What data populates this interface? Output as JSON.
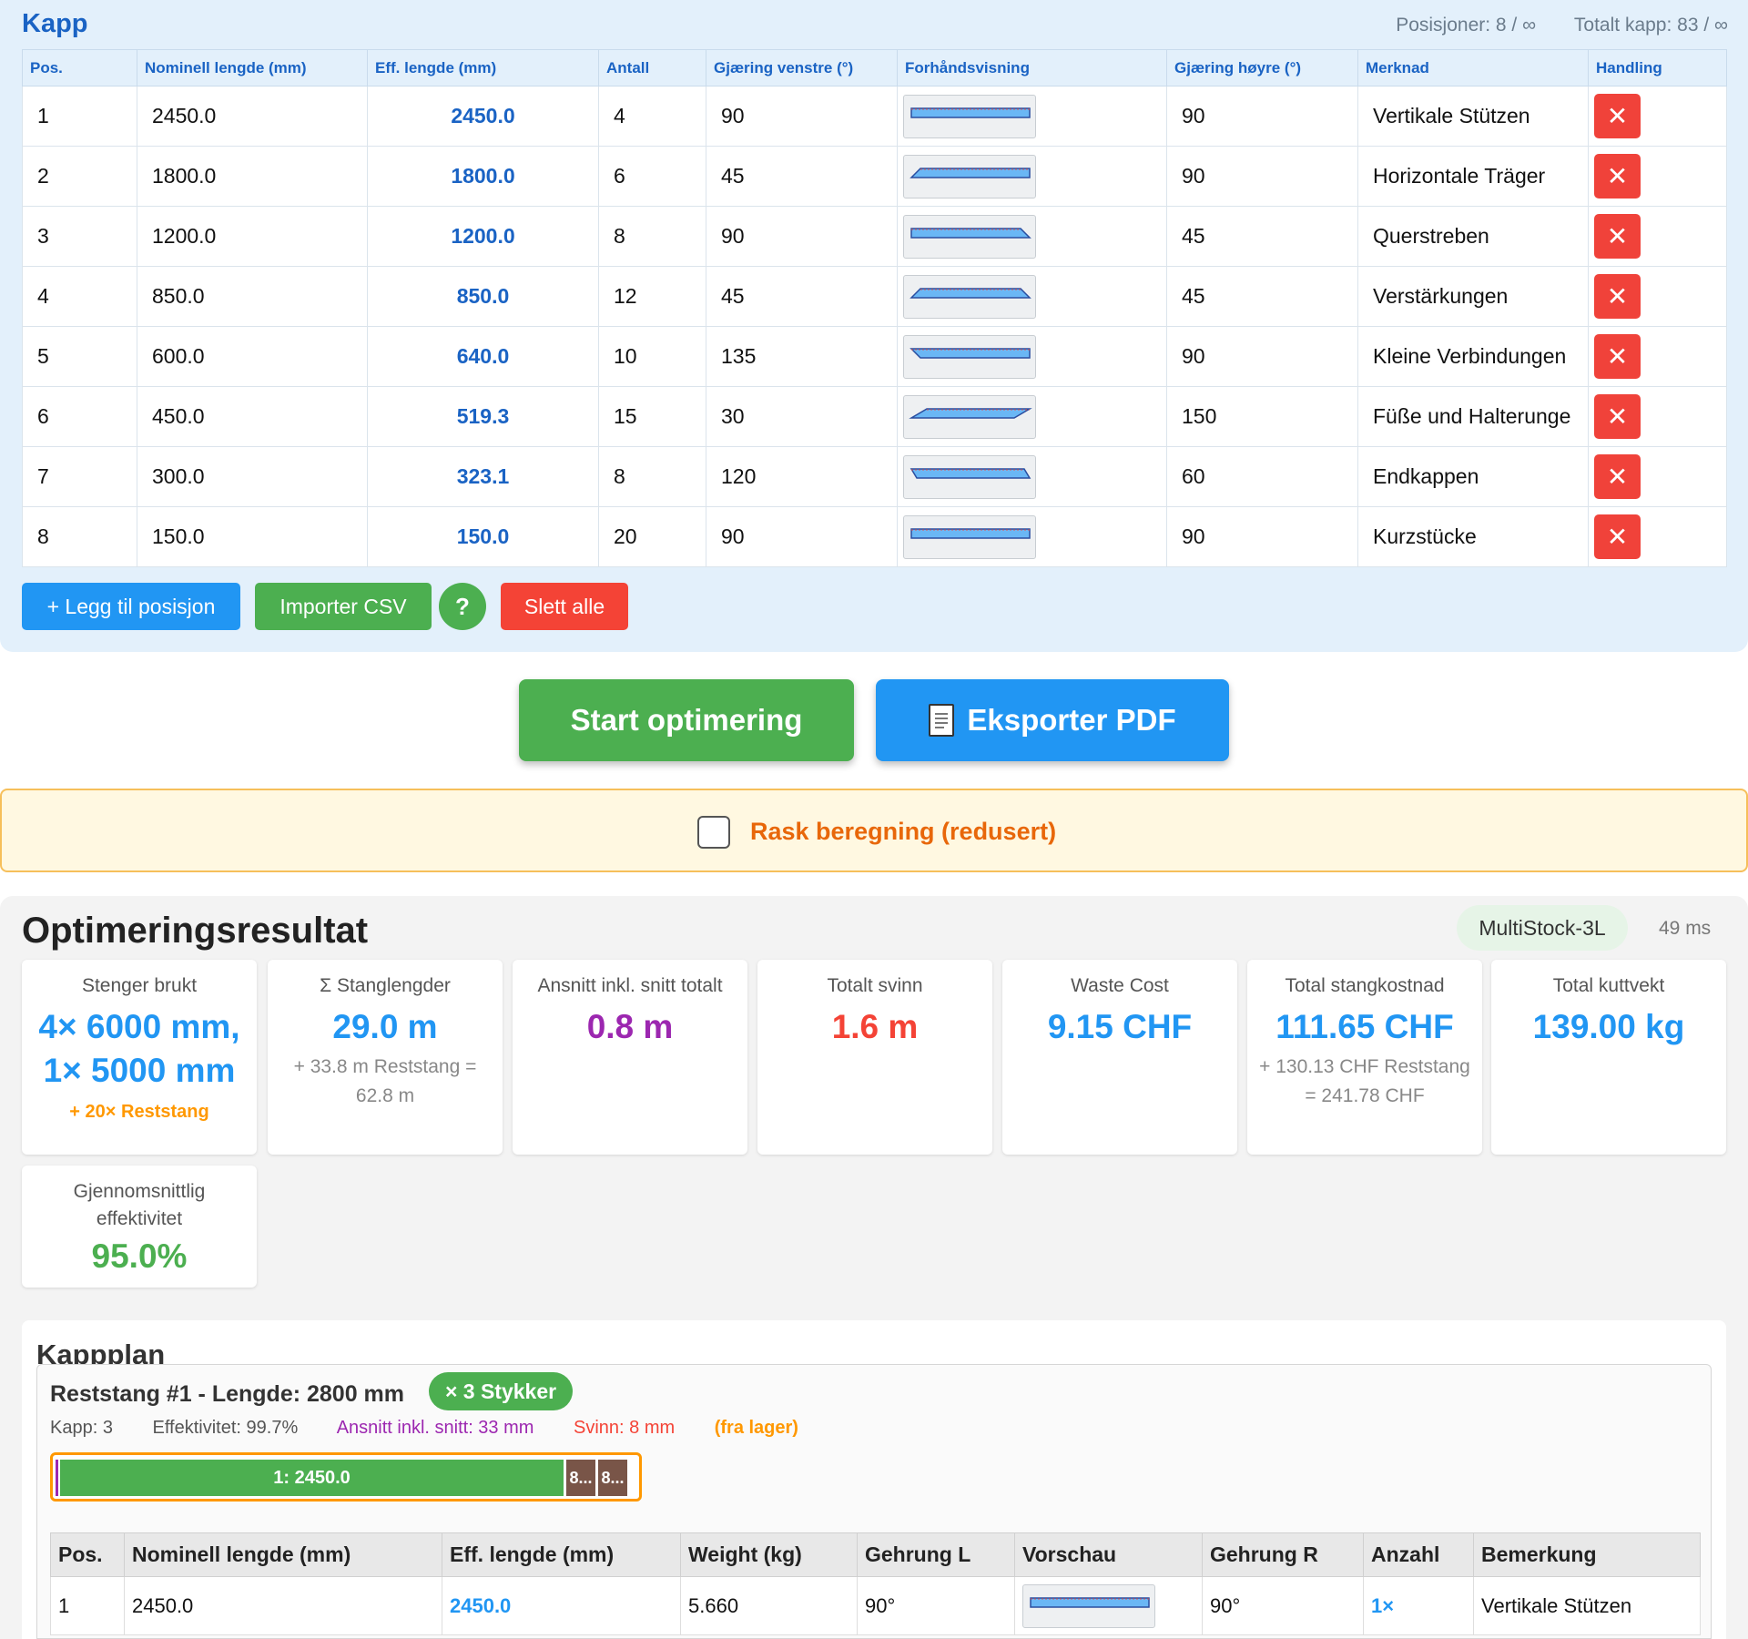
{
  "header": {
    "title": "Kapp",
    "positions": "Posisjoner: 8 / ∞",
    "total_cuts": "Totalt kapp: 83 / ∞"
  },
  "input_table": {
    "columns": [
      "Pos.",
      "Nominell lengde (mm)",
      "Eff. lengde (mm)",
      "Antall",
      "Gjæring venstre (°)",
      "Forhåndsvisning",
      "Gjæring høyre (°)",
      "Merknad",
      "Handling"
    ],
    "rows": [
      {
        "pos": "1",
        "nominal": "2450.0",
        "eff": "2450.0",
        "qty": "4",
        "miter_left": "90",
        "miter_right": "90",
        "note": "Vertikale Stützen"
      },
      {
        "pos": "2",
        "nominal": "1800.0",
        "eff": "1800.0",
        "qty": "6",
        "miter_left": "45",
        "miter_right": "90",
        "note": "Horizontale Träger"
      },
      {
        "pos": "3",
        "nominal": "1200.0",
        "eff": "1200.0",
        "qty": "8",
        "miter_left": "90",
        "miter_right": "45",
        "note": "Querstreben"
      },
      {
        "pos": "4",
        "nominal": "850.0",
        "eff": "850.0",
        "qty": "12",
        "miter_left": "45",
        "miter_right": "45",
        "note": "Verstärkungen"
      },
      {
        "pos": "5",
        "nominal": "600.0",
        "eff": "640.0",
        "qty": "10",
        "miter_left": "135",
        "miter_right": "90",
        "note": "Kleine Verbindungen"
      },
      {
        "pos": "6",
        "nominal": "450.0",
        "eff": "519.3",
        "qty": "15",
        "miter_left": "30",
        "miter_right": "150",
        "note": "Füße und Halterunge"
      },
      {
        "pos": "7",
        "nominal": "300.0",
        "eff": "323.1",
        "qty": "8",
        "miter_left": "120",
        "miter_right": "60",
        "note": "Endkappen"
      },
      {
        "pos": "8",
        "nominal": "150.0",
        "eff": "150.0",
        "qty": "20",
        "miter_left": "90",
        "miter_right": "90",
        "note": "Kurzstücke"
      }
    ],
    "delete_symbol": "✕"
  },
  "actions": {
    "add": "+ Legg til posisjon",
    "import": "Importer CSV",
    "help": "?",
    "delete_all": "Slett alle",
    "start": "Start optimering",
    "export": "Eksporter PDF",
    "export_icon": "document-icon"
  },
  "fast_calc": {
    "label": "Rask beregning (redusert)",
    "checked": false
  },
  "result": {
    "title": "Optimeringsresultat",
    "algorithm": "MultiStock-3L",
    "time": "49 ms",
    "cards": {
      "bars_used": {
        "label": "Stenger brukt",
        "value": "4× 6000 mm, 1× 5000 mm",
        "sub": "+ 20× Reststang"
      },
      "bar_lengths": {
        "label": "Σ Stanglengder",
        "value": "29.0 m",
        "sub": "+ 33.8 m Reststang = 62.8 m"
      },
      "cuts_total": {
        "label": "Ansnitt inkl. snitt totalt",
        "value": "0.8 m"
      },
      "waste_total": {
        "label": "Totalt svinn",
        "value": "1.6 m"
      },
      "waste_cost": {
        "label": "Waste Cost",
        "value": "9.15 CHF"
      },
      "bar_cost": {
        "label": "Total stangkostnad",
        "value": "111.65 CHF",
        "sub": "+ 130.13 CHF Reststang = 241.78 CHF"
      },
      "cut_weight": {
        "label": "Total kuttvekt",
        "value": "139.00 kg"
      },
      "efficiency": {
        "label": "Gjennomsnittlig effektivitet",
        "value": "95.0%"
      }
    },
    "colors": {
      "blue": "#2196f3",
      "purple": "#9c27b0",
      "red": "#f44336",
      "green": "#4caf50",
      "orange": "#ff9800"
    }
  },
  "plan": {
    "title": "Kappplan",
    "stock": {
      "heading": "Reststang #1 - Lengde: 2800 mm",
      "badge": "× 3 Stykker",
      "cuts": "Kapp: 3",
      "efficiency": "Effektivitet: 99.7%",
      "kerf": "Ansnitt inkl. snitt: 33 mm",
      "waste": "Svinn: 8 mm",
      "source": "(fra lager)",
      "stock_length_mm": 2800,
      "segments": [
        {
          "label": "1: 2450.0",
          "length_mm": 2450,
          "color": "#4caf50"
        },
        {
          "label": "8...",
          "length_mm": 150,
          "color": "#795548"
        },
        {
          "label": "8...",
          "length_mm": 150,
          "color": "#795548"
        }
      ]
    },
    "table": {
      "columns": [
        "Pos.",
        "Nominell lengde (mm)",
        "Eff. lengde (mm)",
        "Weight (kg)",
        "Gehrung L",
        "Vorschau",
        "Gehrung R",
        "Anzahl",
        "Bemerkung"
      ],
      "rows": [
        {
          "pos": "1",
          "nominal": "2450.0",
          "eff": "2450.0",
          "weight": "5.660",
          "miter_l": "90°",
          "miter_r": "90°",
          "qty": "1×",
          "note": "Vertikale Stützen"
        }
      ]
    }
  }
}
